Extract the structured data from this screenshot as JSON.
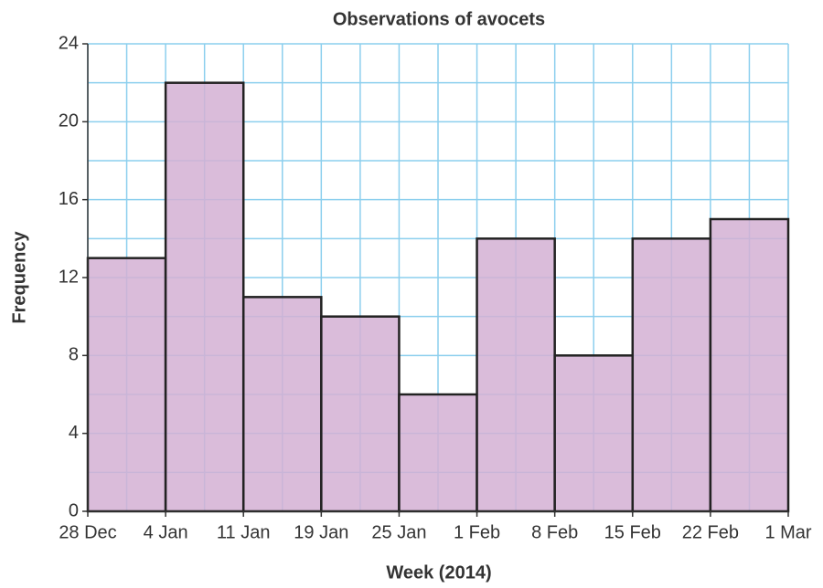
{
  "chart_data": {
    "type": "histogram",
    "title": "Observations of avocets",
    "xlabel": "Week (2014)",
    "ylabel": "Frequency",
    "bins": [
      "28 Dec",
      "4 Jan",
      "11 Jan",
      "19 Jan",
      "25 Jan",
      "1 Feb",
      "8 Feb",
      "15 Feb",
      "22 Feb",
      "1 Mar"
    ],
    "values": [
      13,
      22,
      11,
      10,
      6,
      14,
      8,
      14,
      15
    ],
    "color": "#d4b0d4",
    "edge_color": "#222222",
    "grid_color": "#8ccfee",
    "ylim": [
      0,
      24
    ],
    "yticks": [
      0,
      4,
      8,
      12,
      16,
      20,
      24
    ],
    "grid": true
  }
}
